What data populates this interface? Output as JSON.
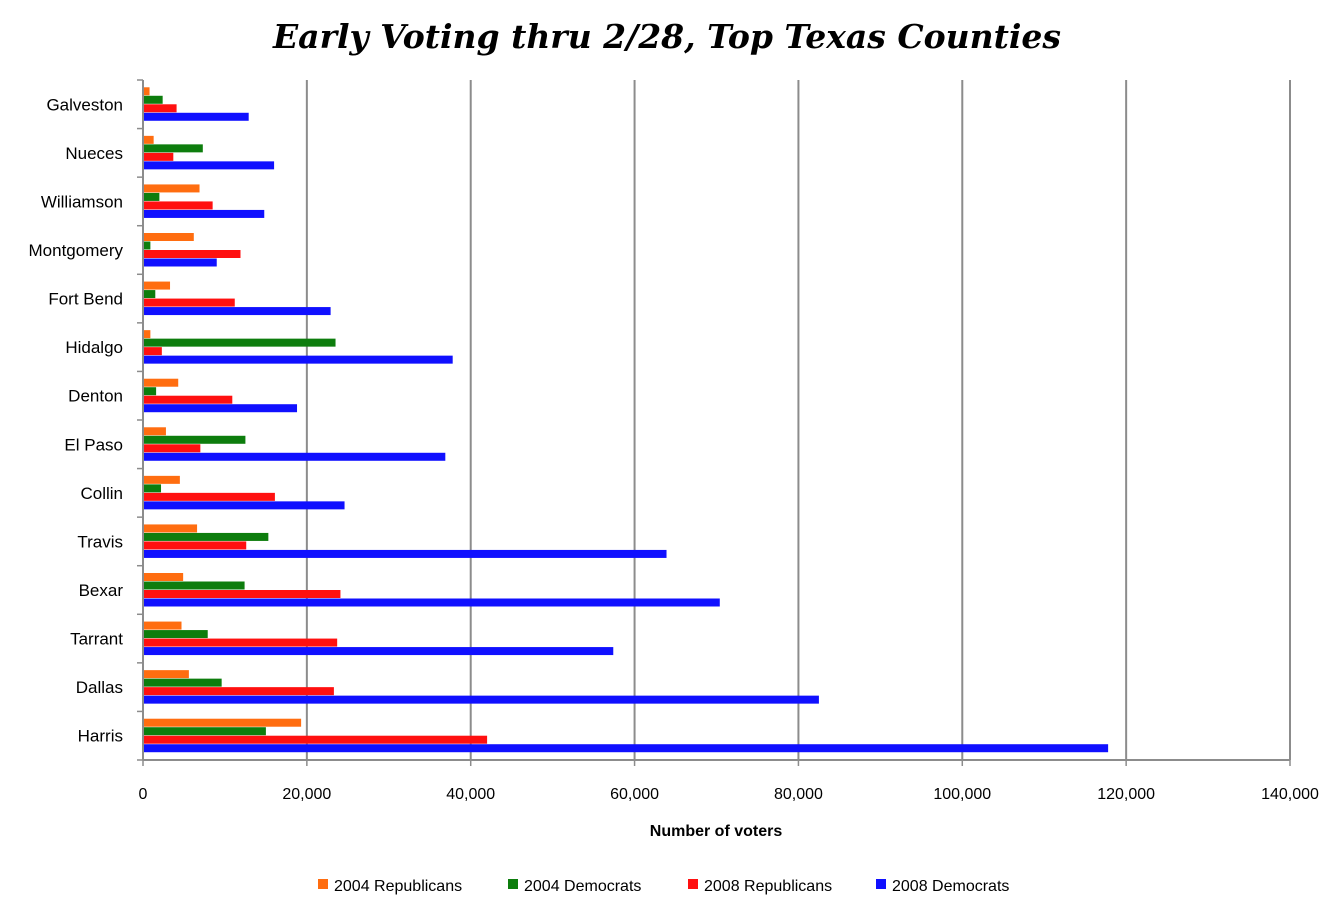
{
  "chart_data": {
    "type": "bar",
    "orientation": "horizontal",
    "title": "Early Voting thru 2/28, Top Texas Counties",
    "xlabel": "Number of voters",
    "ylabel": "",
    "xlim": [
      0,
      140000
    ],
    "x_ticks": [
      "0",
      "20,000",
      "40,000",
      "60,000",
      "80,000",
      "100,000",
      "120,000",
      "140,000"
    ],
    "grid": true,
    "legend_position": "bottom",
    "categories": [
      "Galveston",
      "Nueces",
      "Williamson",
      "Montgomery",
      "Fort Bend",
      "Hidalgo",
      "Denton",
      "El Paso",
      "Collin",
      "Travis",
      "Bexar",
      "Tarrant",
      "Dallas",
      "Harris"
    ],
    "series": [
      {
        "name": "2004 Republicans",
        "color": "#ff6d10",
        "values": [
          800,
          1300,
          6900,
          6200,
          3300,
          900,
          4300,
          2800,
          4500,
          6600,
          4900,
          4700,
          5600,
          19300
        ]
      },
      {
        "name": "2004 Democrats",
        "color": "#0d7d0d",
        "values": [
          2400,
          7300,
          2000,
          900,
          1500,
          23500,
          1600,
          12500,
          2200,
          15300,
          12400,
          7900,
          9600,
          15000
        ]
      },
      {
        "name": "2008 Republicans",
        "color": "#ff1010",
        "values": [
          4100,
          3700,
          8500,
          11900,
          11200,
          2300,
          10900,
          7000,
          16100,
          12600,
          24100,
          23700,
          23300,
          42000
        ]
      },
      {
        "name": "2008 Democrats",
        "color": "#1010ff",
        "values": [
          12900,
          16000,
          14800,
          9000,
          22900,
          37800,
          18800,
          36900,
          24600,
          63900,
          70400,
          57400,
          82500,
          117800
        ]
      }
    ]
  }
}
